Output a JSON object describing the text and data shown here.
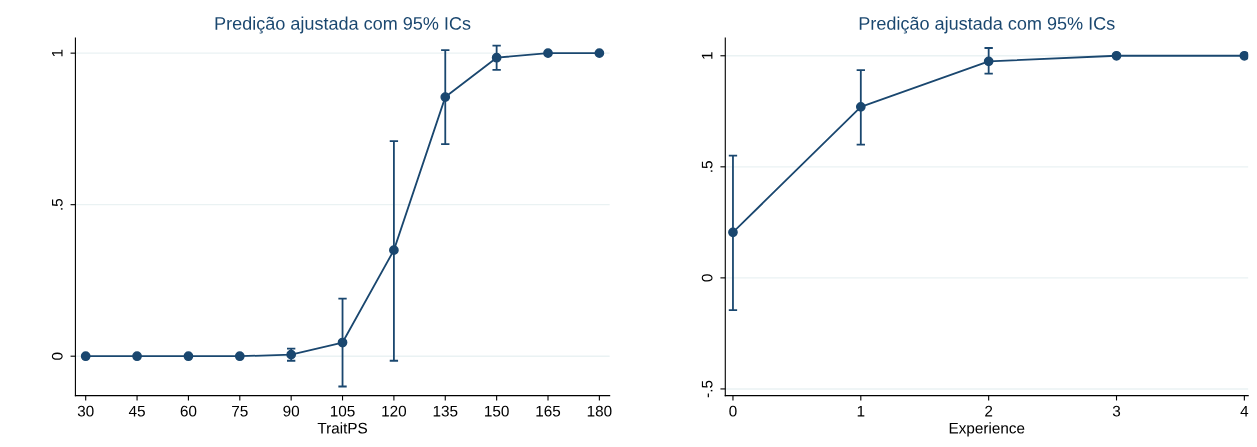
{
  "chart_data": [
    {
      "type": "line",
      "title": "Predição ajustada com 95% ICs",
      "xlabel": "TraitPS",
      "x": [
        30,
        45,
        60,
        75,
        90,
        105,
        120,
        135,
        150,
        165,
        180
      ],
      "series": [
        {
          "color": "#1a476f",
          "values": [
            0,
            0,
            0,
            0,
            0.005,
            0.045,
            0.35,
            0.855,
            0.985,
            1,
            1
          ],
          "errors": [
            null,
            null,
            null,
            null,
            [
              -0.015,
              0.025
            ],
            [
              -0.1,
              0.19
            ],
            [
              -0.015,
              0.71
            ],
            [
              0.7,
              1.01
            ],
            [
              0.945,
              1.025
            ],
            null,
            null
          ]
        }
      ],
      "xlim": [
        27,
        183
      ],
      "xticks": [
        30,
        45,
        60,
        75,
        90,
        105,
        120,
        135,
        150,
        165,
        180
      ],
      "ylim": [
        -0.13,
        1.05
      ],
      "yticks": [
        {
          "value": 0,
          "label": "0"
        },
        {
          "value": 0.5,
          "label": ".5"
        },
        {
          "value": 1,
          "label": "1"
        }
      ],
      "grid": "y",
      "marker": "circle",
      "line_style": "solid"
    },
    {
      "type": "line",
      "title": "Predição ajustada com 95% ICs",
      "xlabel": "Experience",
      "x": [
        0,
        1,
        2,
        3,
        4
      ],
      "series": [
        {
          "color": "#1a476f",
          "values": [
            0.205,
            0.77,
            0.975,
            1,
            1
          ],
          "errors": [
            [
              -0.145,
              0.55
            ],
            [
              0.6,
              0.935
            ],
            [
              0.92,
              1.035
            ],
            null,
            null
          ]
        }
      ],
      "xlim": [
        -0.06,
        4.03
      ],
      "xticks": [
        0,
        1,
        2,
        3,
        4
      ],
      "ylim": [
        -0.53,
        1.08
      ],
      "yticks": [
        {
          "value": -0.5,
          "label": "-.5"
        },
        {
          "value": 0,
          "label": "0"
        },
        {
          "value": 0.5,
          "label": ".5"
        },
        {
          "value": 1,
          "label": "1"
        }
      ],
      "grid": "y",
      "marker": "circle",
      "line_style": "solid"
    }
  ]
}
